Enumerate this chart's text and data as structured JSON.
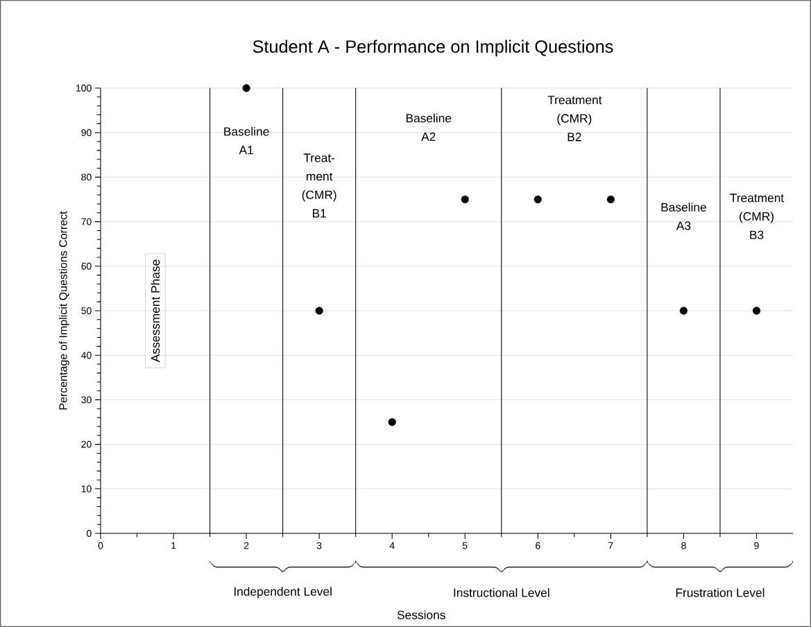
{
  "chart_data": {
    "type": "scatter",
    "title": "Student A - Performance on Implicit Questions",
    "ylabel": "Percentage of Implicit  Questions Correct",
    "x": [
      2,
      3,
      4,
      5,
      6,
      7,
      8,
      9
    ],
    "values": [
      100,
      50,
      25,
      75,
      75,
      75,
      50,
      50
    ],
    "color": "#000000",
    "marker": "circle",
    "xlim": [
      0,
      9.5
    ],
    "xticks": [
      0,
      1,
      2,
      3,
      4,
      5,
      6,
      7,
      8,
      9
    ],
    "ylim": [
      0,
      100
    ],
    "yticks": [
      0,
      10,
      20,
      30,
      40,
      50,
      60,
      70,
      80,
      90,
      100
    ],
    "grid": "y",
    "ref_lines": [
      {
        "axis": "x",
        "value": 1.5
      },
      {
        "axis": "x",
        "value": 2.5
      },
      {
        "axis": "x",
        "value": 3.5
      },
      {
        "axis": "x",
        "value": 5.5
      },
      {
        "axis": "x",
        "value": 7.5
      },
      {
        "axis": "x",
        "value": 8.5
      }
    ],
    "annotations": [
      "Assessment Phase",
      "Baseline A1",
      "Treat-ment (CMR) B1",
      "Baseline A2",
      "Treatment (CMR) B2",
      "Baseline A3",
      "Treatment (CMR) B3",
      "Independent Level",
      "Instructional Level",
      "Frustration Level",
      "Sessions"
    ]
  }
}
